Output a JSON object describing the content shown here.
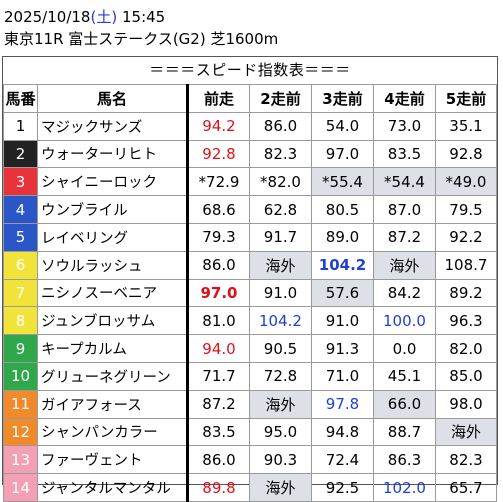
{
  "header": {
    "date": "2025/10/18",
    "dow_open": "(",
    "dow": "土",
    "dow_close": ")",
    "time": "15:45",
    "race": "東京11R 富士ステークス(G2) 芝1600m"
  },
  "table": {
    "section_title": "＝＝＝スピード指数表＝＝＝",
    "headers": [
      "馬番",
      "馬名",
      "前走",
      "2走前",
      "3走前",
      "4走前",
      "5走前"
    ],
    "rows": [
      {
        "no": "1",
        "no_bg": "#ffffff",
        "no_fg": "#000000",
        "name": "マジックサンズ",
        "cells": [
          {
            "v": "94.2",
            "c": "red"
          },
          {
            "v": "86.0",
            "c": ""
          },
          {
            "v": "54.0",
            "c": ""
          },
          {
            "v": "73.0",
            "c": ""
          },
          {
            "v": "35.1",
            "c": ""
          }
        ]
      },
      {
        "no": "2",
        "no_bg": "#222222",
        "no_fg": "#ffffff",
        "name": "ウォーターリヒト",
        "cells": [
          {
            "v": "92.8",
            "c": "red"
          },
          {
            "v": "82.3",
            "c": ""
          },
          {
            "v": "97.0",
            "c": ""
          },
          {
            "v": "83.5",
            "c": ""
          },
          {
            "v": "92.8",
            "c": ""
          }
        ]
      },
      {
        "no": "3",
        "no_bg": "#e8323a",
        "no_fg": "#ffffff",
        "name": "シャイニーロック",
        "cells": [
          {
            "v": "*72.9",
            "c": ""
          },
          {
            "v": "*82.0",
            "c": ""
          },
          {
            "v": "*55.4",
            "c": "gray"
          },
          {
            "v": "*54.4",
            "c": "gray"
          },
          {
            "v": "*49.0",
            "c": "gray"
          }
        ]
      },
      {
        "no": "4",
        "no_bg": "#2b56c8",
        "no_fg": "#ffffff",
        "name": "ウンブライル",
        "cells": [
          {
            "v": "68.6",
            "c": ""
          },
          {
            "v": "62.8",
            "c": ""
          },
          {
            "v": "80.5",
            "c": ""
          },
          {
            "v": "87.0",
            "c": ""
          },
          {
            "v": "79.5",
            "c": ""
          }
        ]
      },
      {
        "no": "5",
        "no_bg": "#2b56c8",
        "no_fg": "#ffffff",
        "name": "レイベリング",
        "cells": [
          {
            "v": "79.3",
            "c": ""
          },
          {
            "v": "91.7",
            "c": ""
          },
          {
            "v": "89.0",
            "c": ""
          },
          {
            "v": "87.2",
            "c": ""
          },
          {
            "v": "92.2",
            "c": ""
          }
        ]
      },
      {
        "no": "6",
        "no_bg": "#f2e33a",
        "no_fg": "#ffffff",
        "name": "ソウルラッシュ",
        "cells": [
          {
            "v": "86.0",
            "c": ""
          },
          {
            "v": "海外",
            "c": "gray"
          },
          {
            "v": "104.2",
            "c": "blue-b"
          },
          {
            "v": "海外",
            "c": "gray"
          },
          {
            "v": "108.7",
            "c": ""
          }
        ]
      },
      {
        "no": "7",
        "no_bg": "#f2e33a",
        "no_fg": "#ffffff",
        "name": "ニシノスーベニア",
        "cells": [
          {
            "v": "97.0",
            "c": "red-b"
          },
          {
            "v": "91.0",
            "c": ""
          },
          {
            "v": "57.6",
            "c": "gray"
          },
          {
            "v": "84.2",
            "c": ""
          },
          {
            "v": "89.2",
            "c": ""
          }
        ]
      },
      {
        "no": "8",
        "no_bg": "#f2e33a",
        "no_fg": "#ffffff",
        "name": "ジュンブロッサム",
        "cells": [
          {
            "v": "81.0",
            "c": ""
          },
          {
            "v": "104.2",
            "c": "blue"
          },
          {
            "v": "91.0",
            "c": ""
          },
          {
            "v": "100.0",
            "c": "blue"
          },
          {
            "v": "96.3",
            "c": ""
          }
        ]
      },
      {
        "no": "9",
        "no_bg": "#2ea84a",
        "no_fg": "#ffffff",
        "name": "キープカルム",
        "cells": [
          {
            "v": "94.0",
            "c": "red"
          },
          {
            "v": "90.5",
            "c": ""
          },
          {
            "v": "91.3",
            "c": ""
          },
          {
            "v": "0.0",
            "c": ""
          },
          {
            "v": "82.0",
            "c": ""
          }
        ]
      },
      {
        "no": "10",
        "no_bg": "#2ea84a",
        "no_fg": "#ffffff",
        "name": "グリューネグリーン",
        "cells": [
          {
            "v": "71.7",
            "c": ""
          },
          {
            "v": "72.8",
            "c": ""
          },
          {
            "v": "71.0",
            "c": ""
          },
          {
            "v": "45.1",
            "c": ""
          },
          {
            "v": "85.0",
            "c": ""
          }
        ]
      },
      {
        "no": "11",
        "no_bg": "#f08a2a",
        "no_fg": "#ffffff",
        "name": "ガイアフォース",
        "cells": [
          {
            "v": "87.2",
            "c": ""
          },
          {
            "v": "海外",
            "c": "gray"
          },
          {
            "v": "97.8",
            "c": "blue"
          },
          {
            "v": "66.0",
            "c": "gray"
          },
          {
            "v": "98.0",
            "c": ""
          }
        ]
      },
      {
        "no": "12",
        "no_bg": "#f08a2a",
        "no_fg": "#ffffff",
        "name": "シャンパンカラー",
        "cells": [
          {
            "v": "83.5",
            "c": ""
          },
          {
            "v": "95.0",
            "c": ""
          },
          {
            "v": "94.8",
            "c": ""
          },
          {
            "v": "88.7",
            "c": ""
          },
          {
            "v": "海外",
            "c": "gray"
          }
        ]
      },
      {
        "no": "13",
        "no_bg": "#f4a0b4",
        "no_fg": "#ffffff",
        "name": "ファーヴェント",
        "cells": [
          {
            "v": "86.0",
            "c": ""
          },
          {
            "v": "90.3",
            "c": ""
          },
          {
            "v": "72.4",
            "c": ""
          },
          {
            "v": "86.3",
            "c": ""
          },
          {
            "v": "82.3",
            "c": ""
          }
        ]
      },
      {
        "no": "14",
        "no_bg": "#f4a0b4",
        "no_fg": "#ffffff",
        "name": "ジャンタルマンタル",
        "cells": [
          {
            "v": "89.8",
            "c": "red"
          },
          {
            "v": "海外",
            "c": "gray"
          },
          {
            "v": "92.5",
            "c": ""
          },
          {
            "v": "102.0",
            "c": "blue"
          },
          {
            "v": "65.7",
            "c": ""
          }
        ]
      }
    ]
  }
}
